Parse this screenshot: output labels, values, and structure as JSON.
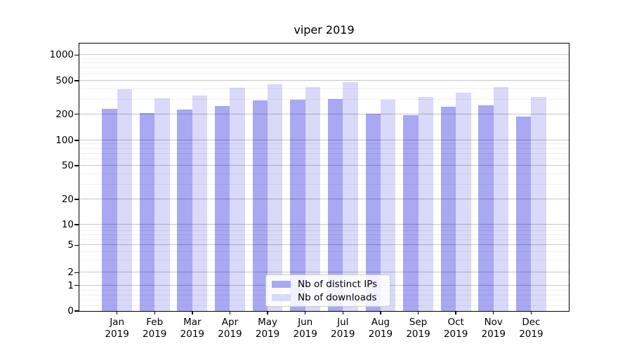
{
  "figure": {
    "title": "viper 2019"
  },
  "chart_data": {
    "type": "bar",
    "title": "viper 2019",
    "categories": [
      "Jan",
      "Feb",
      "Mar",
      "Apr",
      "May",
      "Jun",
      "Jul",
      "Aug",
      "Sep",
      "Oct",
      "Nov",
      "Dec"
    ],
    "x_tick_second_line": "2019",
    "series": [
      {
        "name": "Nb of distinct IPs",
        "color": "#a8a8f3",
        "values": [
          230,
          205,
          228,
          250,
          290,
          298,
          305,
          204,
          196,
          247,
          255,
          188
        ]
      },
      {
        "name": "Nb of downloads",
        "color": "#d9d9f9",
        "values": [
          395,
          310,
          335,
          413,
          454,
          420,
          485,
          295,
          320,
          360,
          420,
          323
        ]
      }
    ],
    "yscale": "symlog",
    "ylim": [
      0,
      1150
    ],
    "yticks": [
      0,
      1,
      2,
      5,
      10,
      20,
      50,
      100,
      200,
      500,
      1000
    ],
    "grid": {
      "axis": "y",
      "major": true,
      "minor": true
    },
    "legend_position": "lower center"
  },
  "colors": {
    "background": "#ffffff",
    "bar_distinct_ips": "#a8a8f3",
    "bar_downloads": "#d9d9f9",
    "axis_frame": "#000000",
    "grid_major": "#c9c9c9",
    "grid_minor": "#efefef",
    "legend_border": "#cccccc",
    "text": "#000000"
  }
}
